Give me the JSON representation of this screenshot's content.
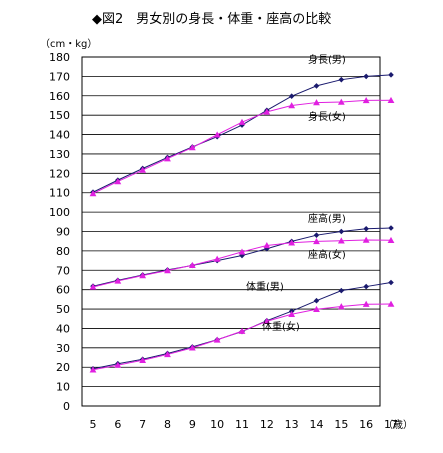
{
  "chart_data": {
    "type": "line",
    "title": "◆図2　男女別の身長・体重・座高の比較",
    "ylabel": "（cm・kg）",
    "xlabel": "（歳）",
    "x": [
      5,
      6,
      7,
      8,
      9,
      10,
      11,
      12,
      13,
      14,
      15,
      16,
      17
    ],
    "xlim": [
      5,
      17
    ],
    "ylim": [
      0,
      180
    ],
    "ytick_step": 10,
    "grid": true,
    "colors": {
      "male": "#1a1a6e",
      "female": "#e020e0"
    },
    "series": [
      {
        "name": "身長(男)",
        "group": "male",
        "values": [
          110.3,
          116.5,
          122.5,
          128.2,
          133.6,
          138.9,
          144.9,
          152.5,
          159.8,
          165.1,
          168.3,
          170.0,
          170.8
        ]
      },
      {
        "name": "身長(女)",
        "group": "female",
        "values": [
          109.6,
          115.8,
          121.7,
          127.6,
          133.3,
          139.9,
          146.4,
          151.7,
          155.0,
          156.5,
          156.8,
          157.6,
          157.7
        ]
      },
      {
        "name": "座高(男)",
        "group": "male",
        "values": [
          61.8,
          64.8,
          67.6,
          70.2,
          72.5,
          75.0,
          77.6,
          81.1,
          84.9,
          88.1,
          90.0,
          91.4,
          91.8
        ]
      },
      {
        "name": "座高(女)",
        "group": "female",
        "values": [
          61.4,
          64.5,
          67.3,
          69.9,
          72.6,
          75.8,
          79.5,
          82.8,
          84.2,
          84.9,
          85.2,
          85.6,
          85.5
        ]
      },
      {
        "name": "体重(男)",
        "group": "male",
        "values": [
          19.2,
          21.8,
          24.1,
          27.1,
          30.5,
          34.2,
          38.4,
          44.0,
          48.9,
          54.3,
          59.5,
          61.6,
          63.7
        ]
      },
      {
        "name": "体重(女)",
        "group": "female",
        "values": [
          18.7,
          21.1,
          23.6,
          26.6,
          30.0,
          34.1,
          38.6,
          43.7,
          47.3,
          49.9,
          51.3,
          52.5,
          52.6
        ]
      }
    ]
  }
}
